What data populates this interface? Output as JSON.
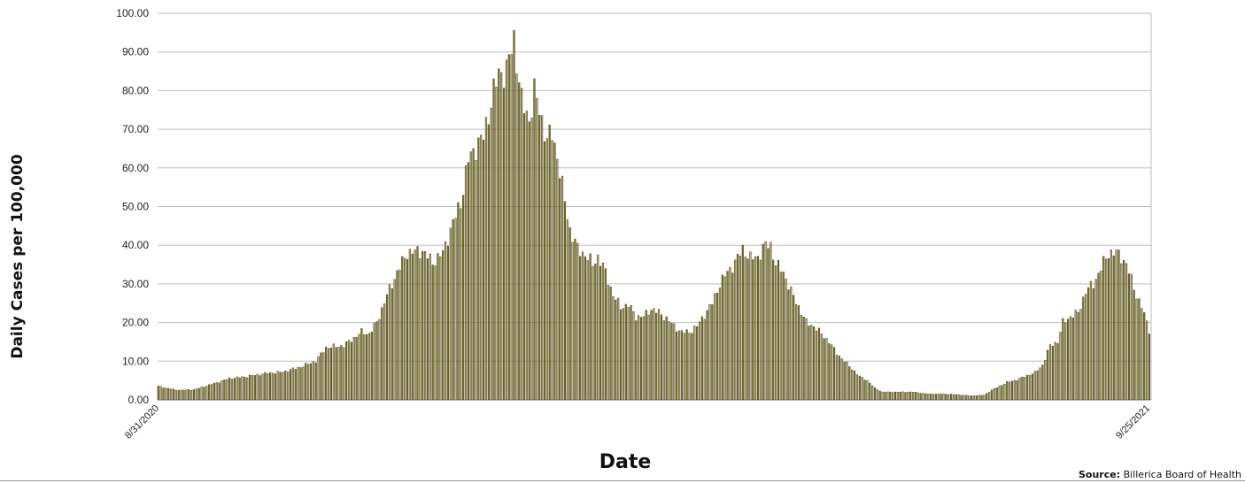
{
  "chart_data": {
    "type": "bar",
    "xlabel": "Date",
    "ylabel": "Daily Cases per 100,000",
    "ylim": [
      0,
      100
    ],
    "yticks": [
      "0.00",
      "10.00",
      "20.00",
      "30.00",
      "40.00",
      "50.00",
      "60.00",
      "70.00",
      "80.00",
      "90.00",
      "100.00"
    ],
    "grid": true,
    "x_start": "8/31/2020",
    "x_end": "9/25/2021",
    "tick_labels": [
      "8/31/2020",
      "9/25/2021"
    ],
    "bar_colors": [
      "#6b8e23",
      "#b7c28a",
      "#5a3a20",
      "#c26a6a"
    ],
    "anchor_series": {
      "name": "",
      "points": [
        [
          "8/31/2020",
          3.5
        ],
        [
          "9/7/2020",
          2.5
        ],
        [
          "9/14/2020",
          2.6
        ],
        [
          "9/21/2020",
          4.0
        ],
        [
          "9/28/2020",
          5.5
        ],
        [
          "10/5/2020",
          6.0
        ],
        [
          "10/12/2020",
          6.8
        ],
        [
          "10/19/2020",
          7.2
        ],
        [
          "10/26/2020",
          8.5
        ],
        [
          "11/1/2020",
          10.0
        ],
        [
          "11/5/2020",
          13.5
        ],
        [
          "11/12/2020",
          14.0
        ],
        [
          "11/19/2020",
          17.5
        ],
        [
          "11/22/2020",
          17.0
        ],
        [
          "11/25/2020",
          20.0
        ],
        [
          "11/29/2020",
          27.0
        ],
        [
          "12/3/2020",
          33.0
        ],
        [
          "12/7/2020",
          38.0
        ],
        [
          "12/13/2020",
          38.5
        ],
        [
          "12/17/2020",
          35.5
        ],
        [
          "12/21/2020",
          38.0
        ],
        [
          "12/24/2020",
          44.0
        ],
        [
          "12/28/2020",
          51.0
        ],
        [
          "12/31/2020",
          62.0
        ],
        [
          "1/3/2021",
          65.5
        ],
        [
          "1/6/2021",
          68.0
        ],
        [
          "1/9/2021",
          77.0
        ],
        [
          "1/12/2021",
          84.5
        ],
        [
          "1/15/2021",
          85.0
        ],
        [
          "1/18/2021",
          93.5
        ],
        [
          "1/19/2021",
          88.0
        ],
        [
          "1/21/2021",
          77.0
        ],
        [
          "1/24/2021",
          72.5
        ],
        [
          "1/26/2021",
          79.5
        ],
        [
          "1/28/2021",
          75.0
        ],
        [
          "1/31/2021",
          67.0
        ],
        [
          "2/2/2021",
          69.0
        ],
        [
          "2/4/2021",
          63.0
        ],
        [
          "2/6/2021",
          55.0
        ],
        [
          "2/9/2021",
          44.0
        ],
        [
          "2/12/2021",
          39.0
        ],
        [
          "2/15/2021",
          37.5
        ],
        [
          "2/18/2021",
          35.0
        ],
        [
          "2/20/2021",
          37.0
        ],
        [
          "2/23/2021",
          33.0
        ],
        [
          "2/26/2021",
          27.0
        ],
        [
          "3/1/2021",
          24.0
        ],
        [
          "3/4/2021",
          24.5
        ],
        [
          "3/7/2021",
          21.5
        ],
        [
          "3/10/2021",
          21.5
        ],
        [
          "3/13/2021",
          23.5
        ],
        [
          "3/16/2021",
          22.5
        ],
        [
          "3/19/2021",
          21.0
        ],
        [
          "3/22/2021",
          19.0
        ],
        [
          "3/25/2021",
          17.5
        ],
        [
          "3/28/2021",
          17.5
        ],
        [
          "3/31/2021",
          19.0
        ],
        [
          "4/3/2021",
          22.0
        ],
        [
          "4/6/2021",
          25.0
        ],
        [
          "4/9/2021",
          30.0
        ],
        [
          "4/12/2021",
          33.0
        ],
        [
          "4/15/2021",
          35.5
        ],
        [
          "4/18/2021",
          39.0
        ],
        [
          "4/21/2021",
          36.5
        ],
        [
          "4/24/2021",
          37.0
        ],
        [
          "4/27/2021",
          40.0
        ],
        [
          "4/29/2021",
          40.0
        ],
        [
          "5/1/2021",
          35.0
        ],
        [
          "5/4/2021",
          33.0
        ],
        [
          "5/7/2021",
          28.0
        ],
        [
          "5/10/2021",
          24.0
        ],
        [
          "5/13/2021",
          20.0
        ],
        [
          "5/16/2021",
          19.0
        ],
        [
          "5/19/2021",
          17.0
        ],
        [
          "5/22/2021",
          15.0
        ],
        [
          "5/25/2021",
          12.0
        ],
        [
          "5/28/2021",
          10.0
        ],
        [
          "5/31/2021",
          8.0
        ],
        [
          "6/3/2021",
          6.0
        ],
        [
          "6/6/2021",
          5.0
        ],
        [
          "6/9/2021",
          3.0
        ],
        [
          "6/12/2021",
          2.0
        ],
        [
          "6/18/2021",
          2.0
        ],
        [
          "6/24/2021",
          2.0
        ],
        [
          "6/30/2021",
          1.5
        ],
        [
          "7/6/2021",
          1.5
        ],
        [
          "7/12/2021",
          1.3
        ],
        [
          "7/17/2021",
          1.0
        ],
        [
          "7/22/2021",
          1.2
        ],
        [
          "7/25/2021",
          2.5
        ],
        [
          "7/28/2021",
          3.5
        ],
        [
          "7/31/2021",
          4.5
        ],
        [
          "8/3/2021",
          5.0
        ],
        [
          "8/7/2021",
          6.0
        ],
        [
          "8/11/2021",
          7.0
        ],
        [
          "8/14/2021",
          9.0
        ],
        [
          "8/17/2021",
          14.0
        ],
        [
          "8/20/2021",
          15.0
        ],
        [
          "8/22/2021",
          20.0
        ],
        [
          "8/25/2021",
          21.5
        ],
        [
          "8/28/2021",
          22.5
        ],
        [
          "8/31/2021",
          28.0
        ],
        [
          "9/3/2021",
          30.0
        ],
        [
          "9/6/2021",
          34.0
        ],
        [
          "9/9/2021",
          38.0
        ],
        [
          "9/12/2021",
          38.0
        ],
        [
          "9/14/2021",
          37.0
        ],
        [
          "9/16/2021",
          35.0
        ],
        [
          "9/18/2021",
          31.0
        ],
        [
          "9/20/2021",
          27.0
        ],
        [
          "9/22/2021",
          24.0
        ],
        [
          "9/24/2021",
          20.0
        ],
        [
          "9/25/2021",
          18.0
        ]
      ]
    }
  },
  "source": {
    "label": "Source:",
    "text": "Billerica Board of Health"
  }
}
